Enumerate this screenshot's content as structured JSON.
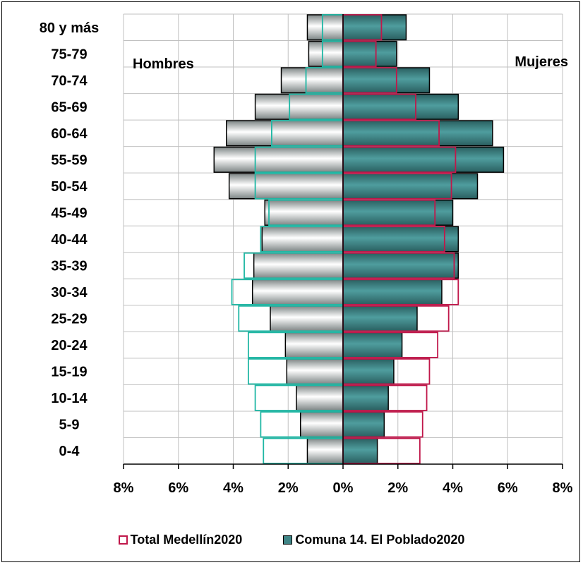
{
  "chart_data": {
    "type": "bar",
    "orientation": "horizontal",
    "layout": "population-pyramid",
    "categories": [
      "80 y más",
      "75-79",
      "70-74",
      "65-69",
      "60-64",
      "55-59",
      "50-54",
      "45-49",
      "40-44",
      "35-39",
      "30-34",
      "25-29",
      "20-24",
      "15-19",
      "10-14",
      "5-9",
      "0-4"
    ],
    "left_label": "Hombres",
    "right_label": "Mujeres",
    "x_ticks": [
      "8%",
      "6%",
      "4%",
      "2%",
      "0%",
      "2%",
      "4%",
      "6%",
      "8%"
    ],
    "xlim": [
      -8,
      8
    ],
    "series": [
      {
        "name": "Total Medellín2020",
        "style": "outline",
        "hombres": [
          0.75,
          0.75,
          1.35,
          1.95,
          2.6,
          3.2,
          3.2,
          2.7,
          3.0,
          3.6,
          4.05,
          3.8,
          3.45,
          3.45,
          3.2,
          3.0,
          2.9
        ],
        "mujeres": [
          1.4,
          1.2,
          1.95,
          2.65,
          3.5,
          4.1,
          3.95,
          3.35,
          3.7,
          4.05,
          4.2,
          3.85,
          3.45,
          3.15,
          3.05,
          2.9,
          2.8
        ]
      },
      {
        "name": "Comuna 14. El Poblado2020",
        "style": "filled",
        "hombres": [
          1.3,
          1.25,
          2.25,
          3.2,
          4.25,
          4.7,
          4.15,
          2.85,
          2.95,
          3.25,
          3.3,
          2.65,
          2.1,
          2.05,
          1.7,
          1.55,
          1.3
        ],
        "mujeres": [
          2.3,
          1.95,
          3.15,
          4.2,
          5.45,
          5.85,
          4.9,
          4.0,
          4.2,
          4.2,
          3.6,
          2.7,
          2.15,
          1.85,
          1.65,
          1.5,
          1.25
        ]
      }
    ],
    "colors": {
      "total_outline_hombres": "#1fb7a4",
      "total_outline_mujeres": "#c0174a",
      "comuna_mujeres_fill": "#3f8586",
      "comuna_hombres_fill": "#c8cccc",
      "grid": "#c0c0c0"
    },
    "grid": true
  }
}
